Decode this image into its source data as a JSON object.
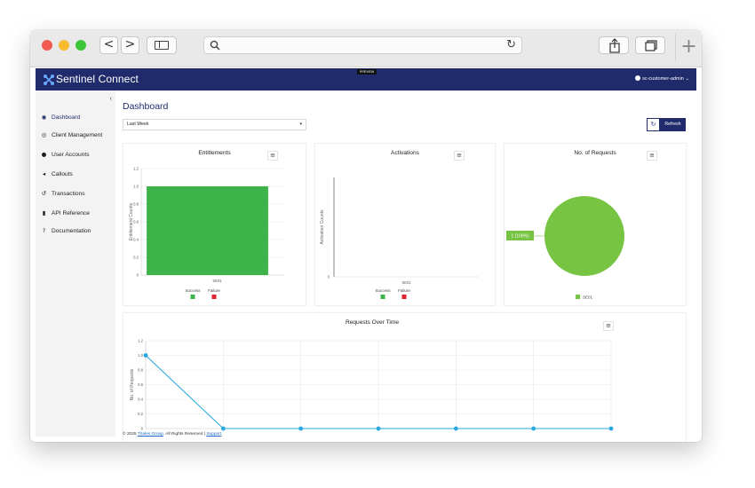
{
  "browser": {
    "nav_back": "<",
    "nav_forward": ">",
    "reload_glyph": "↻",
    "new_tab_glyph": "+",
    "icons": [
      "sidebar-toggle-icon",
      "search-icon",
      "reload-icon",
      "share-icon",
      "tabs-icon",
      "plus-icon"
    ]
  },
  "header": {
    "brand": "Sentinel Connect",
    "preview_tag": "PREVIEW",
    "user": "sc-customer-admin",
    "user_caret": "⌄",
    "colors": {
      "bar": "#202b6c",
      "logo": "#67a8ff"
    }
  },
  "sidebar": {
    "collapse_glyph": "‹",
    "items": [
      {
        "label": "Dashboard",
        "icon": "dashboard-icon",
        "glyph": "◉",
        "active": true
      },
      {
        "label": "Client Management",
        "icon": "eye-icon",
        "glyph": "◎",
        "active": false
      },
      {
        "label": "User Accounts",
        "icon": "user-icon",
        "glyph": "●",
        "active": false
      },
      {
        "label": "Callouts",
        "icon": "megaphone-icon",
        "glyph": "◂",
        "active": false
      },
      {
        "label": "Transactions",
        "icon": "history-icon",
        "glyph": "↺",
        "active": false
      },
      {
        "label": "API Reference",
        "icon": "book-icon",
        "glyph": "▮",
        "active": false
      },
      {
        "label": "Documentation",
        "icon": "help-icon",
        "glyph": "?",
        "active": false
      }
    ]
  },
  "main": {
    "title": "Dashboard",
    "range_select": {
      "value": "Last Week",
      "caret": "▾"
    },
    "refresh": {
      "glyph": "↻",
      "label": "Refresh"
    },
    "menu_glyph": "≡"
  },
  "chart_data": [
    {
      "type": "bar",
      "title": "Entitlements",
      "ylabel": "Entitlement Counts",
      "xlabel": "",
      "categories": [
        "SE01"
      ],
      "series": [
        {
          "name": "Success",
          "color": "#3cb449",
          "values": [
            1
          ]
        },
        {
          "name": "Failure",
          "color": "#e3232b",
          "values": [
            0
          ]
        }
      ],
      "ylim": [
        0,
        1.2
      ],
      "yticks": [
        "0",
        "0.2",
        "0.4",
        "0.6",
        "0.8",
        "1.0",
        "1.2"
      ],
      "grid": true,
      "legend": "bottom"
    },
    {
      "type": "bar",
      "title": "Activations",
      "ylabel": "Activation Counts",
      "xlabel": "",
      "categories": [
        "SE01"
      ],
      "series": [
        {
          "name": "Success",
          "color": "#3cb449",
          "values": [
            0
          ]
        },
        {
          "name": "Failure",
          "color": "#e3232b",
          "values": [
            0
          ]
        }
      ],
      "yticks": [
        "0"
      ],
      "grid": false,
      "legend": "bottom"
    },
    {
      "type": "pie",
      "title": "No. of Requests",
      "slices": [
        {
          "name": "SE01",
          "value": 1,
          "label": "1 (100%)",
          "color": "#76c442"
        }
      ],
      "legend": "bottom"
    },
    {
      "type": "line",
      "title": "Requests Over Time",
      "ylabel": "No. of Requests",
      "xlabel": "",
      "series": [
        {
          "name": "",
          "color": "#29a9e0",
          "values": [
            1,
            0,
            0,
            0,
            0,
            0,
            0
          ]
        }
      ],
      "ylim": [
        0,
        1.2
      ],
      "yticks": [
        "0",
        "0.2",
        "0.4",
        "0.6",
        "0.8",
        "1.0",
        "1.2"
      ],
      "grid": true
    }
  ],
  "footer": {
    "prefix": "© 2025",
    "company": "Thales Group",
    "middle": ". All Rights Reserved |",
    "support": "Support"
  }
}
